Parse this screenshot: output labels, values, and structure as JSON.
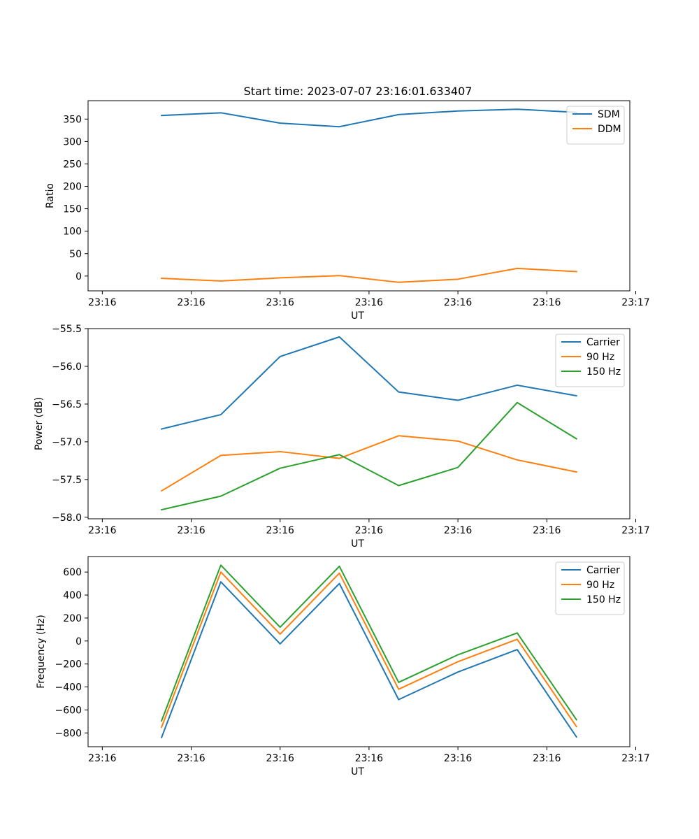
{
  "figure_title": "Start time: 2023-07-07 23:16:01.633407",
  "colors": {
    "blue": "#1f77b4",
    "orange": "#ff7f0e",
    "green": "#2ca02c"
  },
  "chart_data": [
    {
      "type": "line",
      "title": "Start time: 2023-07-07 23:16:01.633407",
      "xlabel": "UT",
      "ylabel": "Ratio",
      "x": [
        0.5,
        1.0,
        1.5,
        2.0,
        2.5,
        3.0,
        3.5,
        4.0
      ],
      "xlim": [
        -0.12,
        4.45
      ],
      "xticks": [
        0,
        0.75,
        1.5,
        2.25,
        3.0,
        3.75,
        4.5
      ],
      "xticklabels": [
        "23:16",
        "23:16",
        "23:16",
        "23:16",
        "23:16",
        "23:16",
        "23:17"
      ],
      "ylim": [
        -33,
        391
      ],
      "yticks": [
        0,
        50,
        100,
        150,
        200,
        250,
        300,
        350
      ],
      "yticklabels": [
        "0",
        "50",
        "100",
        "150",
        "200",
        "250",
        "300",
        "350"
      ],
      "legend": "top-right",
      "series": [
        {
          "name": "SDM",
          "color": "#1f77b4",
          "values": [
            358,
            364,
            341,
            333,
            360,
            368,
            372,
            365
          ]
        },
        {
          "name": "DDM",
          "color": "#ff7f0e",
          "values": [
            -5,
            -11,
            -4,
            1,
            -14,
            -7,
            17,
            10
          ]
        }
      ]
    },
    {
      "type": "line",
      "title": "",
      "xlabel": "UT",
      "ylabel": "Power (dB)",
      "x": [
        0.5,
        1.0,
        1.5,
        2.0,
        2.5,
        3.0,
        3.5,
        4.0
      ],
      "xlim": [
        -0.12,
        4.45
      ],
      "xticks": [
        0,
        0.75,
        1.5,
        2.25,
        3.0,
        3.75,
        4.5
      ],
      "xticklabels": [
        "23:16",
        "23:16",
        "23:16",
        "23:16",
        "23:16",
        "23:16",
        "23:17"
      ],
      "ylim": [
        -58.02,
        -55.5
      ],
      "yticks": [
        -58.0,
        -57.5,
        -57.0,
        -56.5,
        -56.0,
        -55.5
      ],
      "yticklabels": [
        "−58.0",
        "−57.5",
        "−57.0",
        "−56.5",
        "−56.0",
        "−55.5"
      ],
      "legend": "top-right",
      "series": [
        {
          "name": "Carrier",
          "color": "#1f77b4",
          "values": [
            -56.83,
            -56.64,
            -55.87,
            -55.61,
            -56.34,
            -56.45,
            -56.25,
            -56.39
          ]
        },
        {
          "name": "90 Hz",
          "color": "#ff7f0e",
          "values": [
            -57.65,
            -57.18,
            -57.13,
            -57.22,
            -56.92,
            -56.99,
            -57.24,
            -57.4
          ]
        },
        {
          "name": "150 Hz",
          "color": "#2ca02c",
          "values": [
            -57.9,
            -57.72,
            -57.35,
            -57.17,
            -57.58,
            -57.34,
            -56.48,
            -56.96
          ]
        }
      ]
    },
    {
      "type": "line",
      "title": "",
      "xlabel": "UT",
      "ylabel": "Frequency (Hz)",
      "x": [
        0.5,
        1.0,
        1.5,
        2.0,
        2.5,
        3.0,
        3.5,
        4.0
      ],
      "xlim": [
        -0.12,
        4.45
      ],
      "xticks": [
        0,
        0.75,
        1.5,
        2.25,
        3.0,
        3.75,
        4.5
      ],
      "xticklabels": [
        "23:16",
        "23:16",
        "23:16",
        "23:16",
        "23:16",
        "23:16",
        "23:17"
      ],
      "ylim": [
        -920,
        735
      ],
      "yticks": [
        -800,
        -600,
        -400,
        -200,
        0,
        200,
        400,
        600
      ],
      "yticklabels": [
        "−800",
        "−600",
        "−400",
        "−200",
        "0",
        "200",
        "400",
        "600"
      ],
      "legend": "top-right",
      "series": [
        {
          "name": "Carrier",
          "color": "#1f77b4",
          "values": [
            -840,
            515,
            -25,
            500,
            -510,
            -270,
            -75,
            -835
          ]
        },
        {
          "name": "90 Hz",
          "color": "#ff7f0e",
          "values": [
            -750,
            600,
            60,
            590,
            -420,
            -180,
            15,
            -745
          ]
        },
        {
          "name": "150 Hz",
          "color": "#2ca02c",
          "values": [
            -695,
            660,
            120,
            650,
            -360,
            -120,
            70,
            -685
          ]
        }
      ]
    }
  ]
}
